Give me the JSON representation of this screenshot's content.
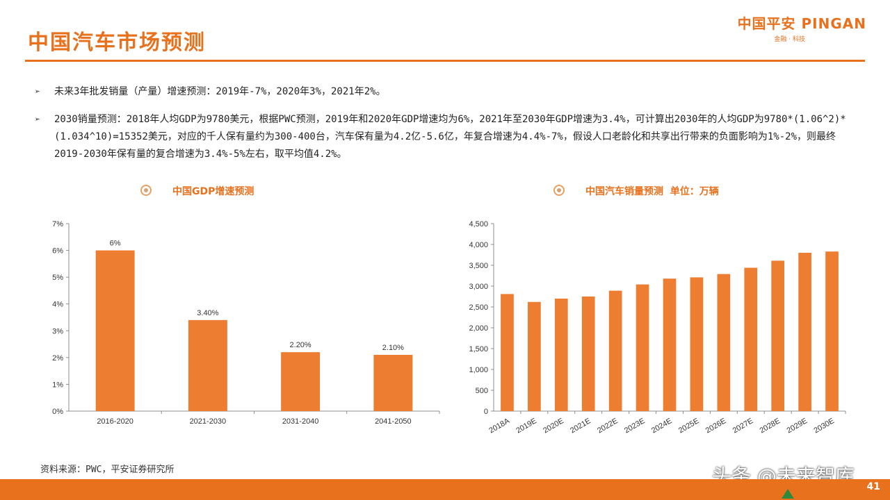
{
  "header": {
    "title": "中国汽车市场预测",
    "logo_main": "中国平安 PINGAN",
    "logo_sub": "金融 · 科技"
  },
  "bullets": [
    "未来3年批发销量（产量）增速预测：2019年-7%，2020年3%，2021年2%。",
    "2030销量预测：2018年人均GDP为9780美元，根据PWC预测，2019年和2020年GDP增速均为6%，2021年至2030年GDP增速为3.4%，可计算出2030年的人均GDP为9780*(1.06^2)*(1.034^10)=15352美元，对应的千人保有量约为300-400台，汽车保有量为4.2亿-5.6亿，年复合增速为4.4%-7%，假设人口老龄化和共享出行带来的负面影响为1%-2%，则最终2019-2030年保有量的复合增速为3.4%-5%左右，取平均值4.2%。"
  ],
  "bullet_marker": "➢",
  "colors": {
    "accent": "#e8711d",
    "bar": "#ed7d31",
    "axis": "#8c8c8c",
    "green": "#2e8b3e"
  },
  "chart_data": [
    {
      "type": "bar",
      "title": "中国GDP增速预测",
      "categories": [
        "2016-2020",
        "2021-2030",
        "2031-2040",
        "2041-2050"
      ],
      "values": [
        6,
        3.4,
        2.2,
        2.1
      ],
      "data_labels": [
        "6%",
        "3.40%",
        "2.20%",
        "2.10%"
      ],
      "ylim": [
        0,
        7
      ],
      "yticks": [
        "0%",
        "1%",
        "2%",
        "3%",
        "4%",
        "5%",
        "6%",
        "7%"
      ],
      "xlabel": "",
      "ylabel": "",
      "grid": false
    },
    {
      "type": "bar",
      "title": "中国汽车销量预测  单位：万辆",
      "categories": [
        "2018A",
        "2019E",
        "2020E",
        "2021E",
        "2022E",
        "2023E",
        "2024E",
        "2025E",
        "2026E",
        "2027E",
        "2028E",
        "2029E",
        "2030E"
      ],
      "values": [
        2810,
        2620,
        2700,
        2750,
        2890,
        3040,
        3180,
        3210,
        3290,
        3440,
        3610,
        3800,
        3830
      ],
      "ylim": [
        0,
        4500
      ],
      "yticks": [
        "0",
        "500",
        "1,000",
        "1,500",
        "2,000",
        "2,500",
        "3,000",
        "3,500",
        "4,000",
        "4,500"
      ],
      "xlabel": "",
      "ylabel": "",
      "grid": false
    }
  ],
  "source": "资料来源：PWC，平安证券研究所",
  "page_number": "41",
  "watermark": "头条 @未来智库"
}
